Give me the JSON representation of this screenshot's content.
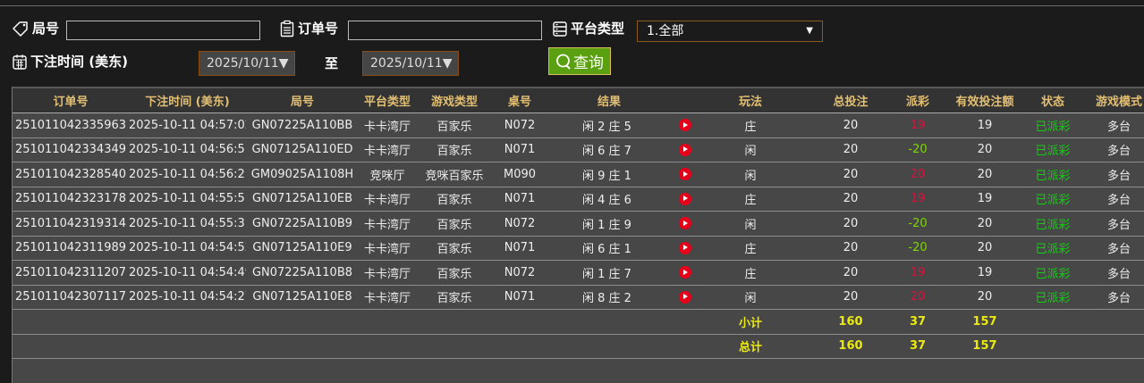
{
  "filters": {
    "round_label": "局号",
    "round_value": "",
    "order_label": "订单号",
    "order_value": "",
    "platform_label": "平台类型",
    "platform_selected": "1.全部",
    "time_label": "下注时间 (美东)",
    "date_from": "2025/10/11",
    "to_label": "至",
    "date_to": "2025/10/11",
    "query_label": "查询"
  },
  "table": {
    "headers": [
      "订单号",
      "下注时间 (美东)",
      "局号",
      "平台类型",
      "游戏类型",
      "桌号",
      "结果",
      "",
      "玩法",
      "总投注",
      "派彩",
      "有效投注额",
      "状态",
      "游戏模式"
    ],
    "rows": [
      {
        "order": "251011042335963",
        "time": "2025-10-11 04:57:02",
        "round": "GN07225A110BB",
        "platform": "卡卡湾厅",
        "game": "百家乐",
        "table": "N072",
        "result": "闲 2 庄 5",
        "play": "庄",
        "bet": "20",
        "payout": "19",
        "payout_color": "red",
        "valid": "19",
        "status": "已派彩",
        "mode": "多台"
      },
      {
        "order": "251011042334349",
        "time": "2025-10-11 04:56:51",
        "round": "GN07125A110ED",
        "platform": "卡卡湾厅",
        "game": "百家乐",
        "table": "N071",
        "result": "闲 6 庄 7",
        "play": "闲",
        "bet": "20",
        "payout": "-20",
        "payout_color": "green",
        "valid": "20",
        "status": "已派彩",
        "mode": "多台"
      },
      {
        "order": "251011042328540",
        "time": "2025-10-11 04:56:21",
        "round": "GM09025A1108H",
        "platform": "竞咪厅",
        "game": "竞咪百家乐",
        "table": "M090",
        "result": "闲 9 庄 1",
        "play": "闲",
        "bet": "20",
        "payout": "20",
        "payout_color": "red",
        "valid": "20",
        "status": "已派彩",
        "mode": "多台"
      },
      {
        "order": "251011042323178",
        "time": "2025-10-11 04:55:51",
        "round": "GN07125A110EB",
        "platform": "卡卡湾厅",
        "game": "百家乐",
        "table": "N071",
        "result": "闲 4 庄 6",
        "play": "庄",
        "bet": "20",
        "payout": "19",
        "payout_color": "red",
        "valid": "19",
        "status": "已派彩",
        "mode": "多台"
      },
      {
        "order": "251011042319314",
        "time": "2025-10-11 04:55:31",
        "round": "GN07225A110B9",
        "platform": "卡卡湾厅",
        "game": "百家乐",
        "table": "N072",
        "result": "闲 1 庄 9",
        "play": "闲",
        "bet": "20",
        "payout": "-20",
        "payout_color": "green",
        "valid": "20",
        "status": "已派彩",
        "mode": "多台"
      },
      {
        "order": "251011042311989",
        "time": "2025-10-11 04:54:52",
        "round": "GN07125A110E9",
        "platform": "卡卡湾厅",
        "game": "百家乐",
        "table": "N071",
        "result": "闲 6 庄 1",
        "play": "庄",
        "bet": "20",
        "payout": "-20",
        "payout_color": "green",
        "valid": "20",
        "status": "已派彩",
        "mode": "多台"
      },
      {
        "order": "251011042311207",
        "time": "2025-10-11 04:54:49",
        "round": "GN07225A110B8",
        "platform": "卡卡湾厅",
        "game": "百家乐",
        "table": "N072",
        "result": "闲 1 庄 7",
        "play": "庄",
        "bet": "20",
        "payout": "19",
        "payout_color": "red",
        "valid": "19",
        "status": "已派彩",
        "mode": "多台"
      },
      {
        "order": "251011042307117",
        "time": "2025-10-11 04:54:27",
        "round": "GN07125A110E8",
        "platform": "卡卡湾厅",
        "game": "百家乐",
        "table": "N071",
        "result": "闲 8 庄 2",
        "play": "闲",
        "bet": "20",
        "payout": "20",
        "payout_color": "red",
        "valid": "20",
        "status": "已派彩",
        "mode": "多台"
      }
    ],
    "subtotal": {
      "label": "小计",
      "bet": "160",
      "payout": "37",
      "valid": "157"
    },
    "total": {
      "label": "总计",
      "bet": "160",
      "payout": "37",
      "valid": "157"
    }
  },
  "colors": {
    "header_text": "#e3bf72",
    "payout_red": "#d8123c",
    "payout_green": "#7dd600",
    "status_green": "#10d010",
    "total_yellow": "#eaea10",
    "query_button": "#5aa010"
  },
  "icons": {
    "round": "tag-icon",
    "order": "clipboard-icon",
    "platform": "server-list-icon",
    "time": "calendar-icon",
    "query": "search-icon",
    "result": "play-icon"
  }
}
